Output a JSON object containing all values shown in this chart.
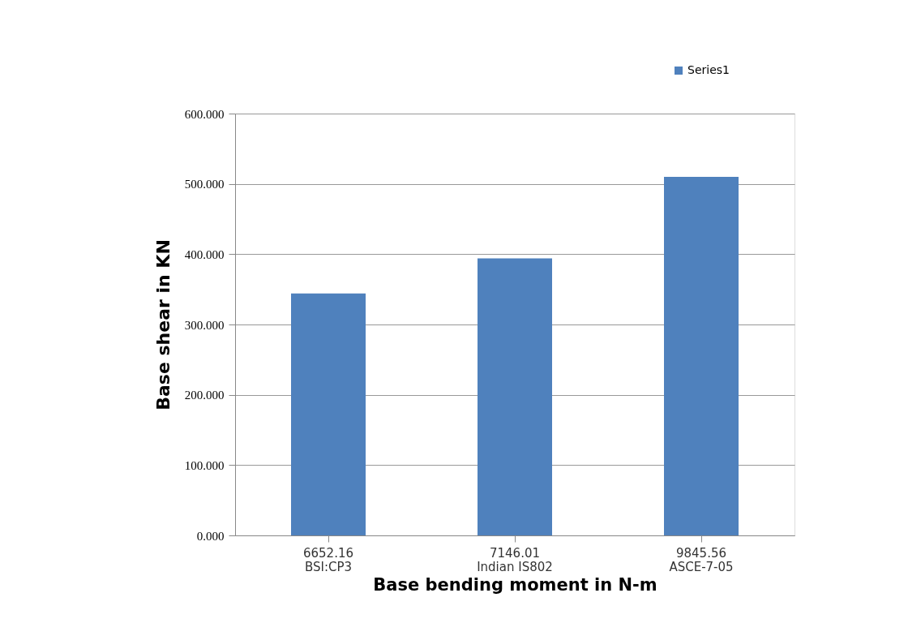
{
  "chart_data": {
    "type": "bar",
    "xlabel": "Base bending moment in N-m",
    "ylabel": "Base shear   in KN",
    "categories": [
      "6652.16\nBSI:CP3",
      "7146.01\nIndian IS802",
      "9845.56\nASCE-7-05"
    ],
    "series": [
      {
        "name": "Series1",
        "color": "#4f81bd",
        "values": [
          344,
          394,
          510
        ]
      }
    ],
    "ylim": [
      0,
      600
    ],
    "yticks": [
      {
        "value": 0,
        "label": "0.000"
      },
      {
        "value": 100,
        "label": "100.000"
      },
      {
        "value": 200,
        "label": "200.000"
      },
      {
        "value": 300,
        "label": "300.000"
      },
      {
        "value": 400,
        "label": "400.000"
      },
      {
        "value": 500,
        "label": "500.000"
      },
      {
        "value": 600,
        "label": "600.000"
      }
    ],
    "grid": "y",
    "legend": "top right"
  }
}
